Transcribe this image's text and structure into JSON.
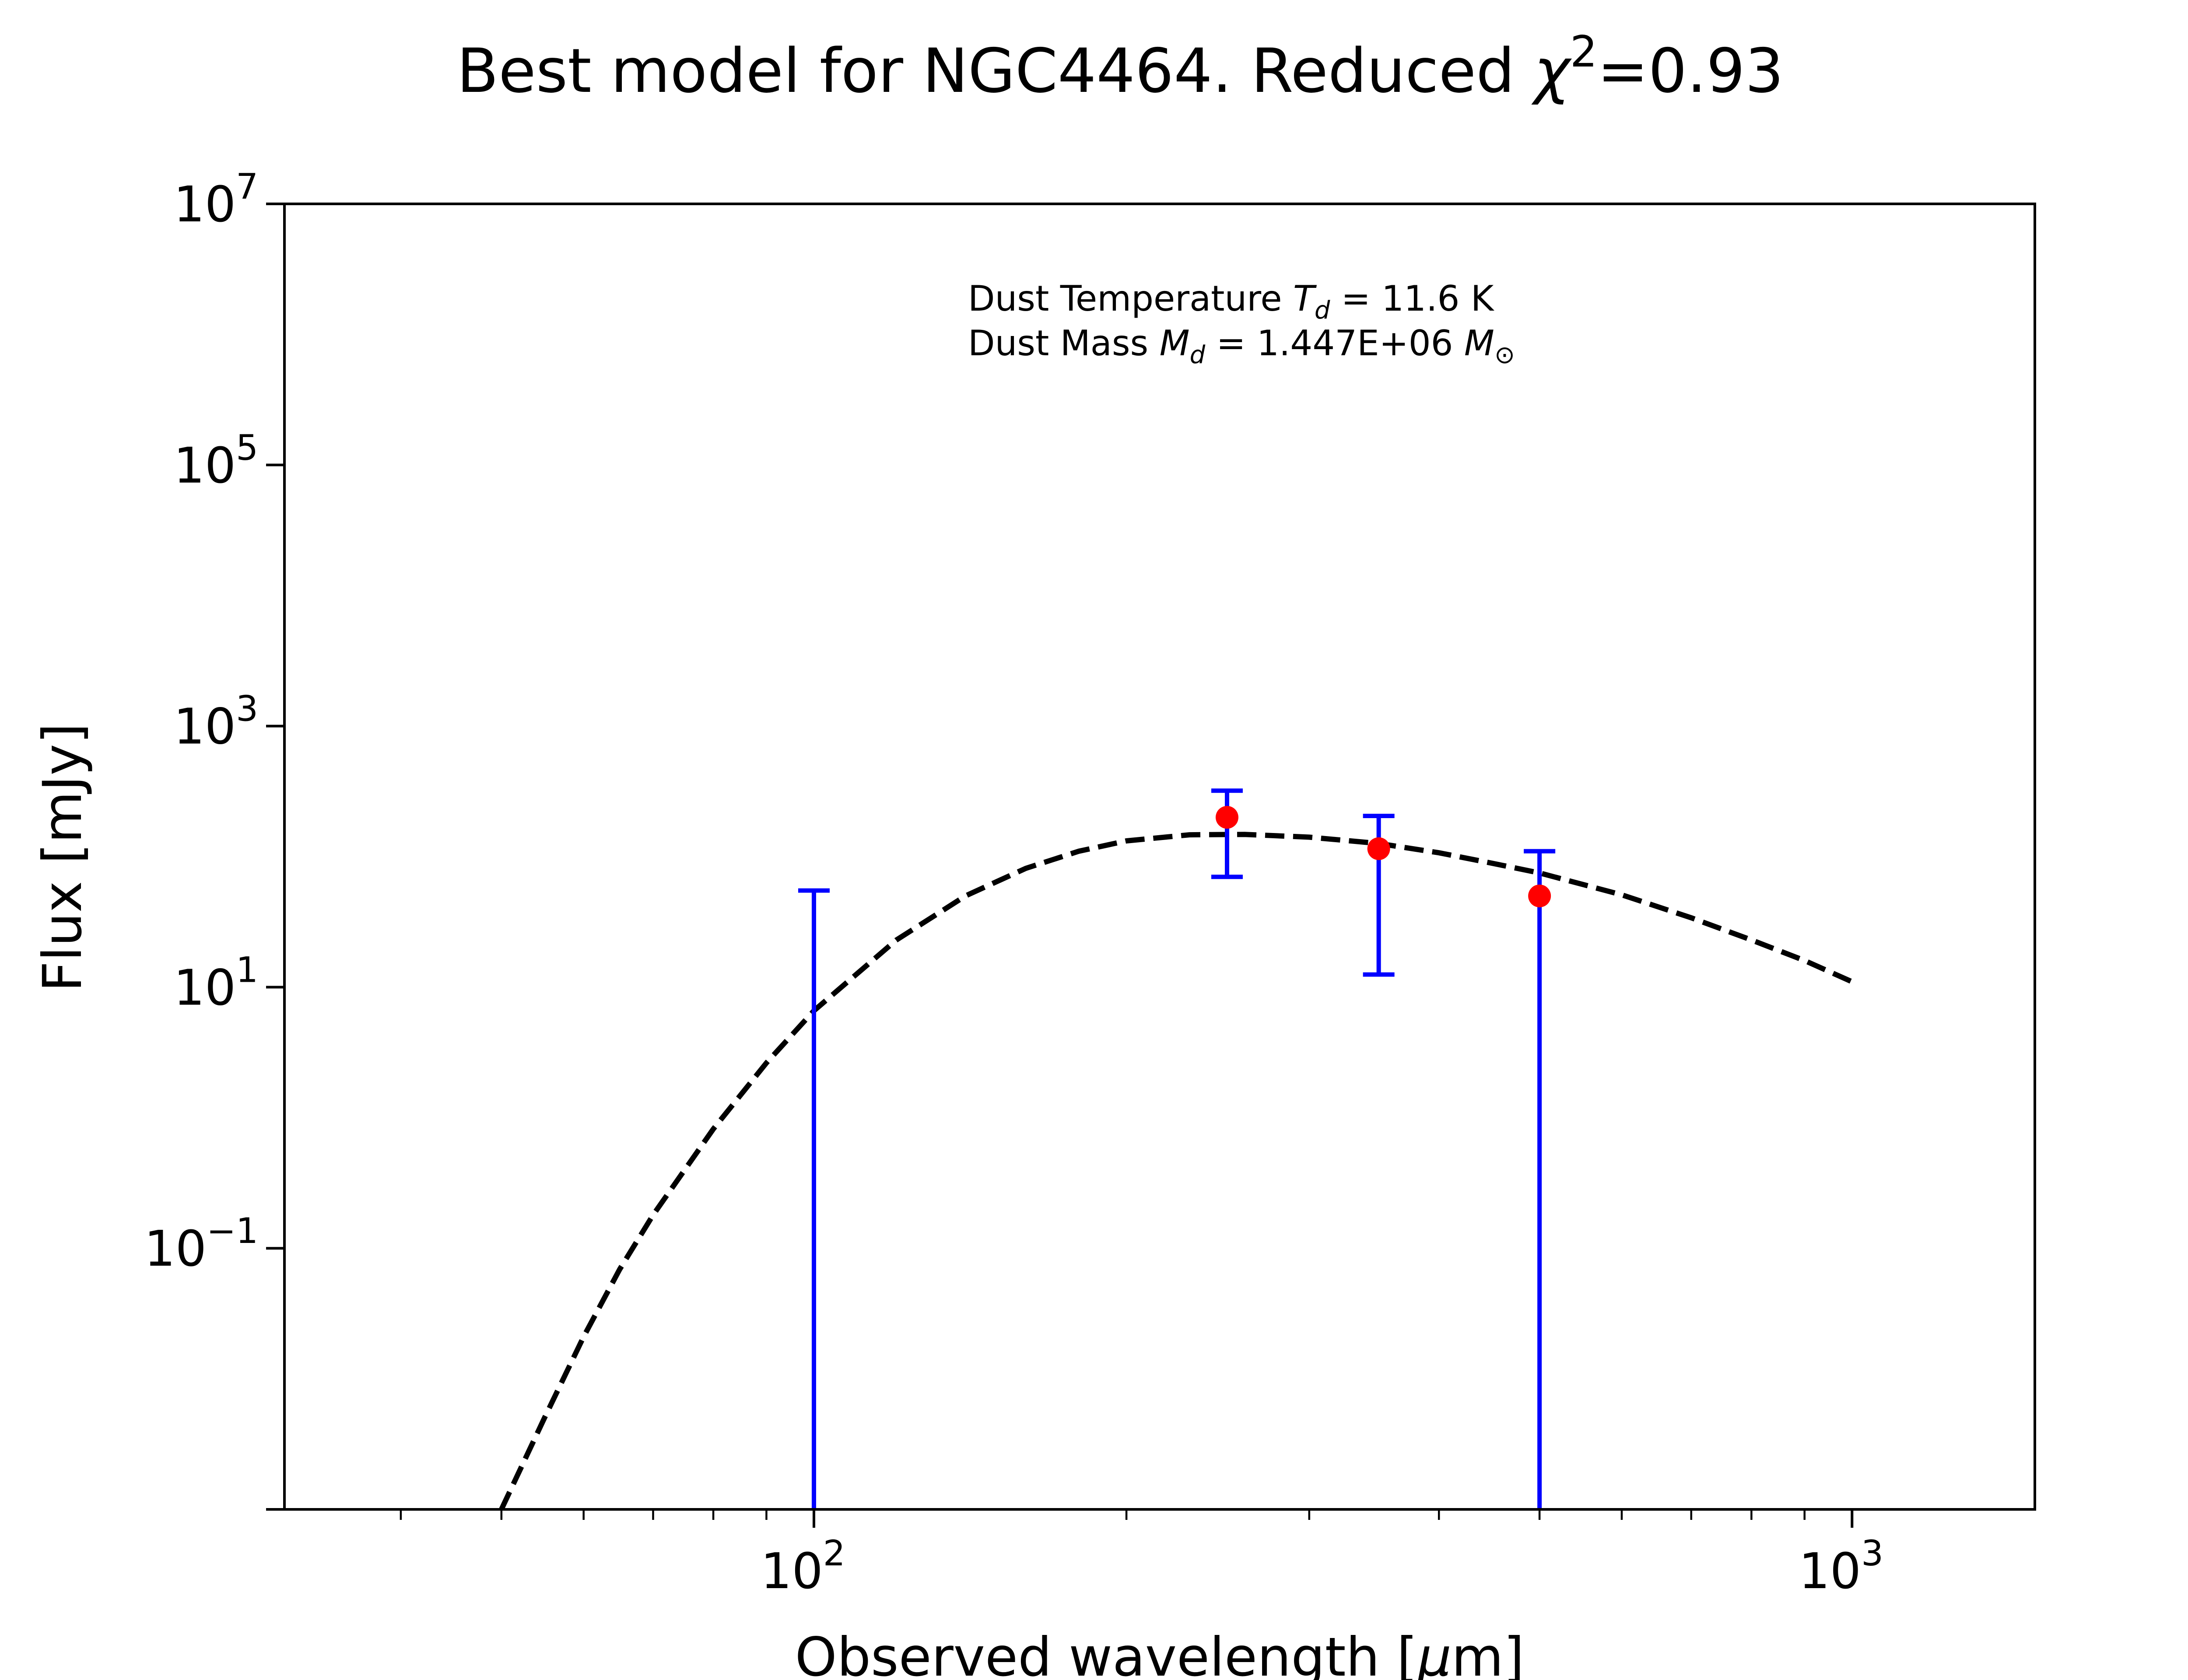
{
  "chart_data": {
    "type": "scatter",
    "title": {
      "prefix": "Best model for NGC4464. Reduced ",
      "chi_symbol": "χ",
      "chi_exponent": "2",
      "value_text": "=0.93"
    },
    "xlabel": {
      "text": "Observed wavelength [",
      "mu": "μ",
      "unit_rest": "m]"
    },
    "ylabel": "Flux [mJy]",
    "x_scale": "log",
    "y_scale": "log",
    "xlim": [
      30.9,
      1500
    ],
    "ylim": [
      0.001,
      10000000
    ],
    "x_ticks": [
      {
        "value": 100,
        "base": "10",
        "exp": "2"
      },
      {
        "value": 1000,
        "base": "10",
        "exp": "3"
      }
    ],
    "y_ticks": [
      {
        "value": 0.1,
        "base": "10",
        "exp": "−1"
      },
      {
        "value": 10,
        "base": "10",
        "exp": "1"
      },
      {
        "value": 1000,
        "base": "10",
        "exp": "3"
      },
      {
        "value": 100000,
        "base": "10",
        "exp": "5"
      },
      {
        "value": 10000000,
        "base": "10",
        "exp": "7"
      }
    ],
    "grid": false,
    "annotations": {
      "temperature": {
        "prefix": "Dust Temperature ",
        "sym": "T",
        "sub": "d",
        "rest": " = 11.6 K"
      },
      "mass": {
        "prefix": "Dust Mass ",
        "sym": "M",
        "sub": "d",
        "rest": " = 1.447E+06 ",
        "unit": "M",
        "unit_sub": "⊙"
      }
    },
    "series": [
      {
        "kind": "model",
        "line_style": "dashed",
        "color": "#000000",
        "x": [
          50,
          55,
          60,
          65,
          70,
          80,
          90,
          100,
          120,
          140,
          160,
          180,
          200,
          230,
          260,
          300,
          350,
          400,
          450,
          500,
          600,
          700,
          800,
          900,
          1000
        ],
        "y": [
          0.001,
          0.005,
          0.021,
          0.069,
          0.18,
          0.82,
          2.63,
          6.6,
          22.9,
          50.1,
          81.3,
          110,
          132,
          147,
          148,
          141,
          126,
          107,
          89,
          75,
          51,
          34,
          23,
          16,
          11
        ]
      },
      {
        "kind": "observations",
        "marker_color": "#ff0000",
        "errorbar_color": "#0000ff",
        "points": [
          {
            "x": 250,
            "y": 200,
            "y_low": 70,
            "y_high": 320
          },
          {
            "x": 350,
            "y": 115,
            "y_low": 12.5,
            "y_high": 205
          },
          {
            "x": 500,
            "y": 50,
            "y_low": 0.001,
            "y_high": 110
          }
        ]
      },
      {
        "kind": "upper_limit",
        "errorbar_color": "#0000ff",
        "points": [
          {
            "x": 100,
            "y_low": 0.001,
            "y_high": 55
          }
        ]
      }
    ]
  }
}
